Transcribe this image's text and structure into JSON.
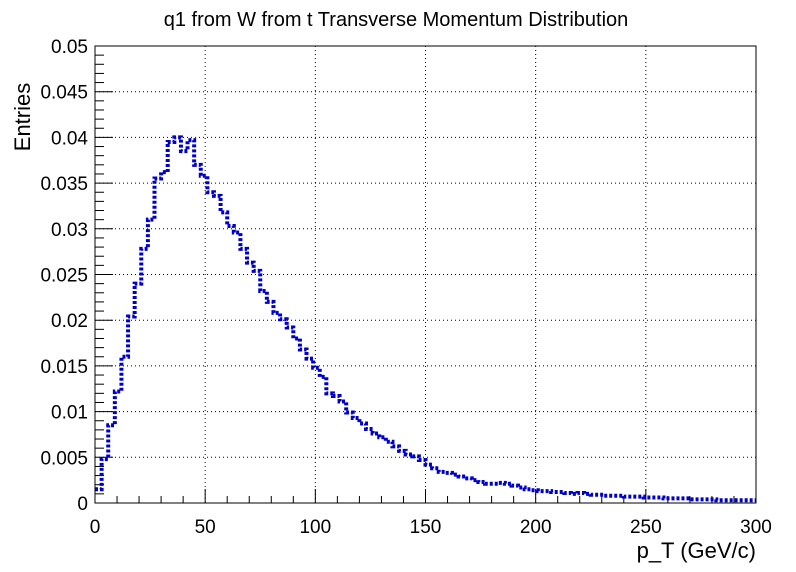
{
  "chart_data": {
    "type": "line",
    "style": "step-histogram",
    "title": "q1 from W from t Transverse Momentum Distribution",
    "xlabel": "p_T (GeV/c)",
    "ylabel": "Entries",
    "xlim": [
      0,
      300
    ],
    "ylim": [
      0,
      0.05
    ],
    "grid": true,
    "line_color": "#0000cc",
    "line_style": "dotted",
    "x_ticks": [
      "0",
      "50",
      "100",
      "150",
      "200",
      "250",
      "300"
    ],
    "y_ticks": [
      "0",
      "0.005",
      "0.01",
      "0.015",
      "0.02",
      "0.025",
      "0.03",
      "0.035",
      "0.04",
      "0.045",
      "0.05"
    ],
    "bin_width": 3,
    "values": [
      0.0015,
      0.0048,
      0.0085,
      0.0122,
      0.016,
      0.0204,
      0.024,
      0.0278,
      0.031,
      0.0355,
      0.0362,
      0.0395,
      0.04,
      0.0385,
      0.0397,
      0.037,
      0.0358,
      0.034,
      0.0336,
      0.0318,
      0.0303,
      0.0296,
      0.0278,
      0.0263,
      0.0254,
      0.0232,
      0.022,
      0.0208,
      0.0201,
      0.0192,
      0.018,
      0.0168,
      0.0158,
      0.0148,
      0.0138,
      0.012,
      0.0117,
      0.0111,
      0.0099,
      0.0093,
      0.0087,
      0.0081,
      0.0076,
      0.0072,
      0.0067,
      0.0062,
      0.0057,
      0.0053,
      0.0051,
      0.0047,
      0.0042,
      0.0038,
      0.0034,
      0.0033,
      0.0031,
      0.0029,
      0.0027,
      0.0025,
      0.0023,
      0.0021,
      0.0021,
      0.0022,
      0.0021,
      0.0019,
      0.0017,
      0.0015,
      0.0014,
      0.0013,
      0.0013,
      0.0012,
      0.0012,
      0.0011,
      0.001,
      0.0011,
      0.001,
      0.0009,
      0.0009,
      0.0008,
      0.0008,
      0.0008,
      0.0007,
      0.0007,
      0.0007,
      0.0006,
      0.0006,
      0.0006,
      0.0005,
      0.0005,
      0.0005,
      0.0005,
      0.0004,
      0.0004,
      0.0004,
      0.0004,
      0.0003,
      0.0003,
      0.0003,
      0.0003,
      0.0003,
      0.0003
    ]
  }
}
